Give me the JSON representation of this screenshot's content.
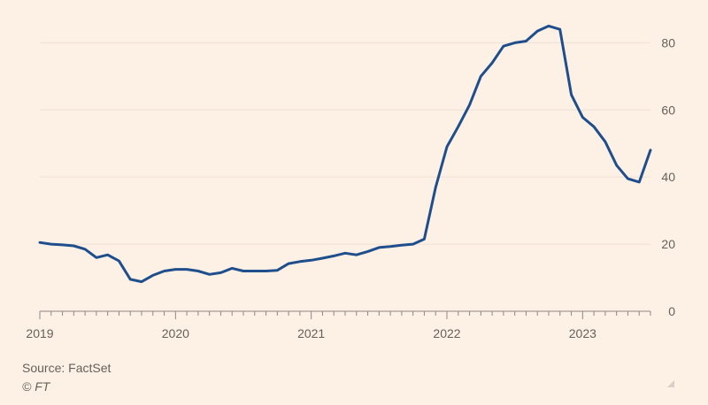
{
  "chart_data": {
    "type": "line",
    "title": "",
    "xlabel": "",
    "ylabel": "",
    "xlim": [
      2019.0,
      2023.5
    ],
    "ylim": [
      0,
      88
    ],
    "grid": true,
    "y_ticks": [
      0,
      20,
      40,
      60,
      80
    ],
    "y_tick_labels": [
      "0",
      "20",
      "40",
      "60",
      "80"
    ],
    "x_ticks": [
      2019,
      2020,
      2021,
      2022,
      2023
    ],
    "x_tick_labels": [
      "2019",
      "2020",
      "2021",
      "2022",
      "2023"
    ],
    "series": [
      {
        "color": "#1f4e8c",
        "x": [
          2019.0,
          2019.083,
          2019.167,
          2019.25,
          2019.333,
          2019.417,
          2019.5,
          2019.583,
          2019.667,
          2019.75,
          2019.833,
          2019.917,
          2020.0,
          2020.083,
          2020.167,
          2020.25,
          2020.333,
          2020.417,
          2020.5,
          2020.583,
          2020.667,
          2020.75,
          2020.833,
          2020.917,
          2021.0,
          2021.083,
          2021.167,
          2021.25,
          2021.333,
          2021.417,
          2021.5,
          2021.583,
          2021.667,
          2021.75,
          2021.833,
          2021.917,
          2022.0,
          2022.083,
          2022.167,
          2022.25,
          2022.333,
          2022.417,
          2022.5,
          2022.583,
          2022.667,
          2022.75,
          2022.833,
          2022.917,
          2023.0,
          2023.083,
          2023.167,
          2023.25,
          2023.333,
          2023.417,
          2023.5
        ],
        "y": [
          20.5,
          20.0,
          19.8,
          19.5,
          18.5,
          16.0,
          16.8,
          15.0,
          9.5,
          8.8,
          10.7,
          12.0,
          12.5,
          12.5,
          12.0,
          11.0,
          11.5,
          12.8,
          12.0,
          12.0,
          12.0,
          12.2,
          14.2,
          14.8,
          15.2,
          15.8,
          16.5,
          17.3,
          16.8,
          17.8,
          19.0,
          19.3,
          19.7,
          20.0,
          21.5,
          37.0,
          49.0,
          55.0,
          61.5,
          70.0,
          74.0,
          79.0,
          80.0,
          80.5,
          83.5,
          85.0,
          84.0,
          64.5,
          57.8,
          55.0,
          50.5,
          43.5,
          39.5,
          38.5,
          48.0
        ]
      }
    ]
  },
  "footer": {
    "source": "Source: FactSet",
    "copyright": "© FT"
  }
}
